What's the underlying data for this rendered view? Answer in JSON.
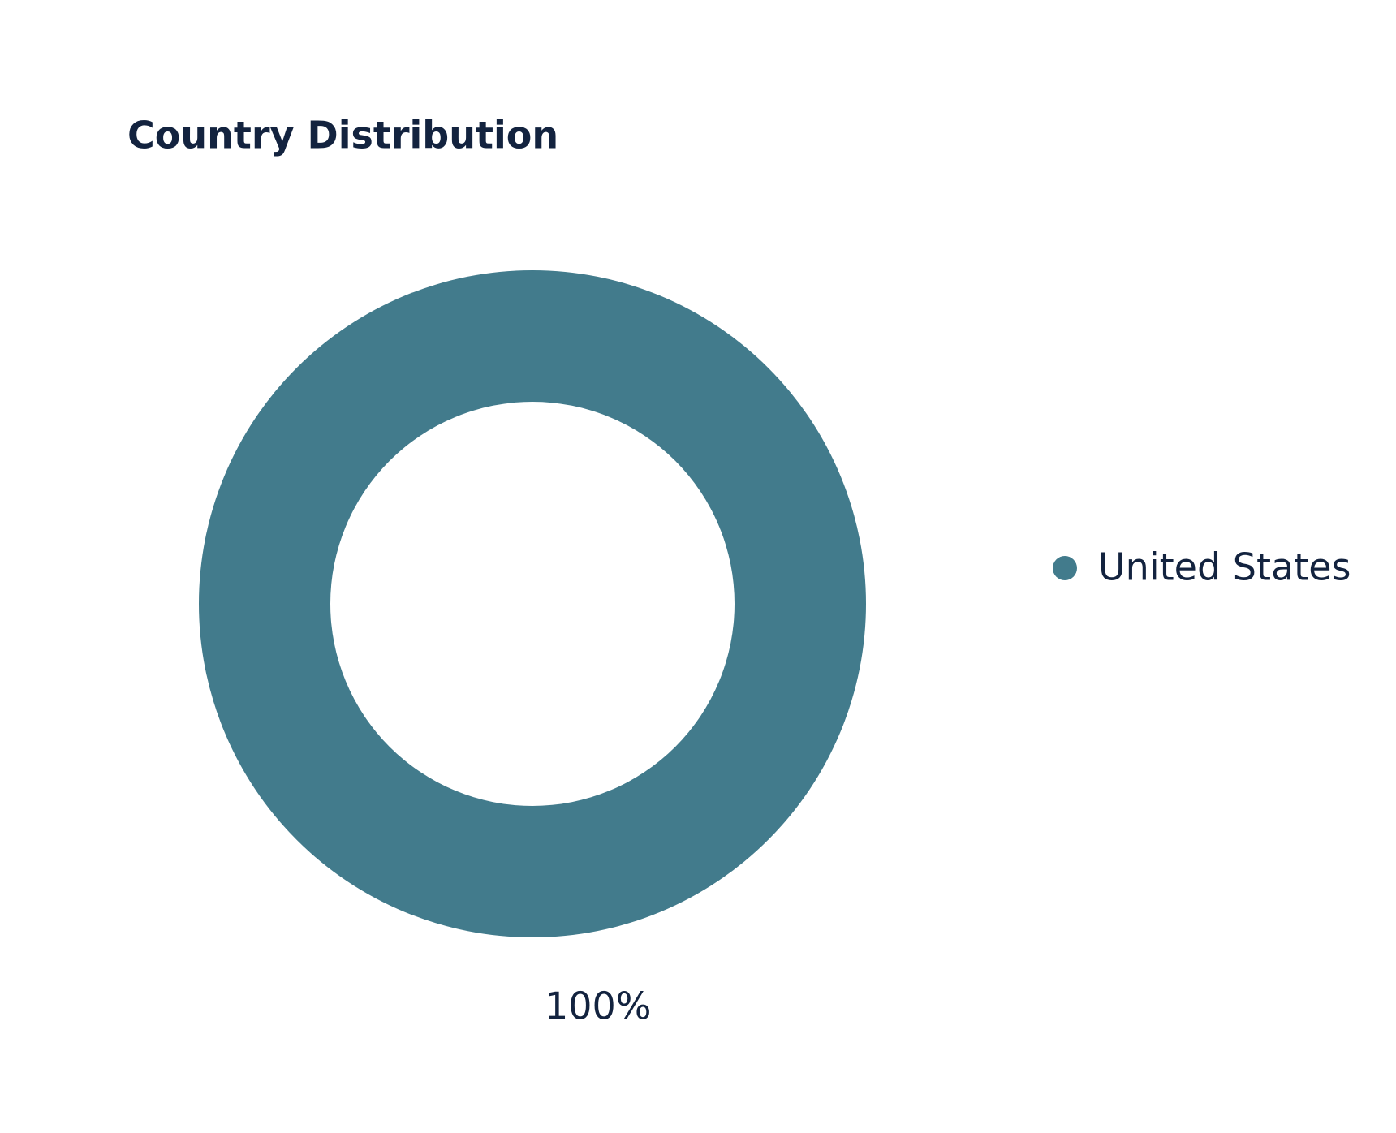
{
  "chart_data": {
    "type": "pie",
    "title": "Country Distribution",
    "categories": [
      "United States"
    ],
    "values": [
      100
    ],
    "value_labels": [
      "100%"
    ],
    "colors": [
      "#427b8c"
    ],
    "donut": true,
    "legend": "right"
  }
}
